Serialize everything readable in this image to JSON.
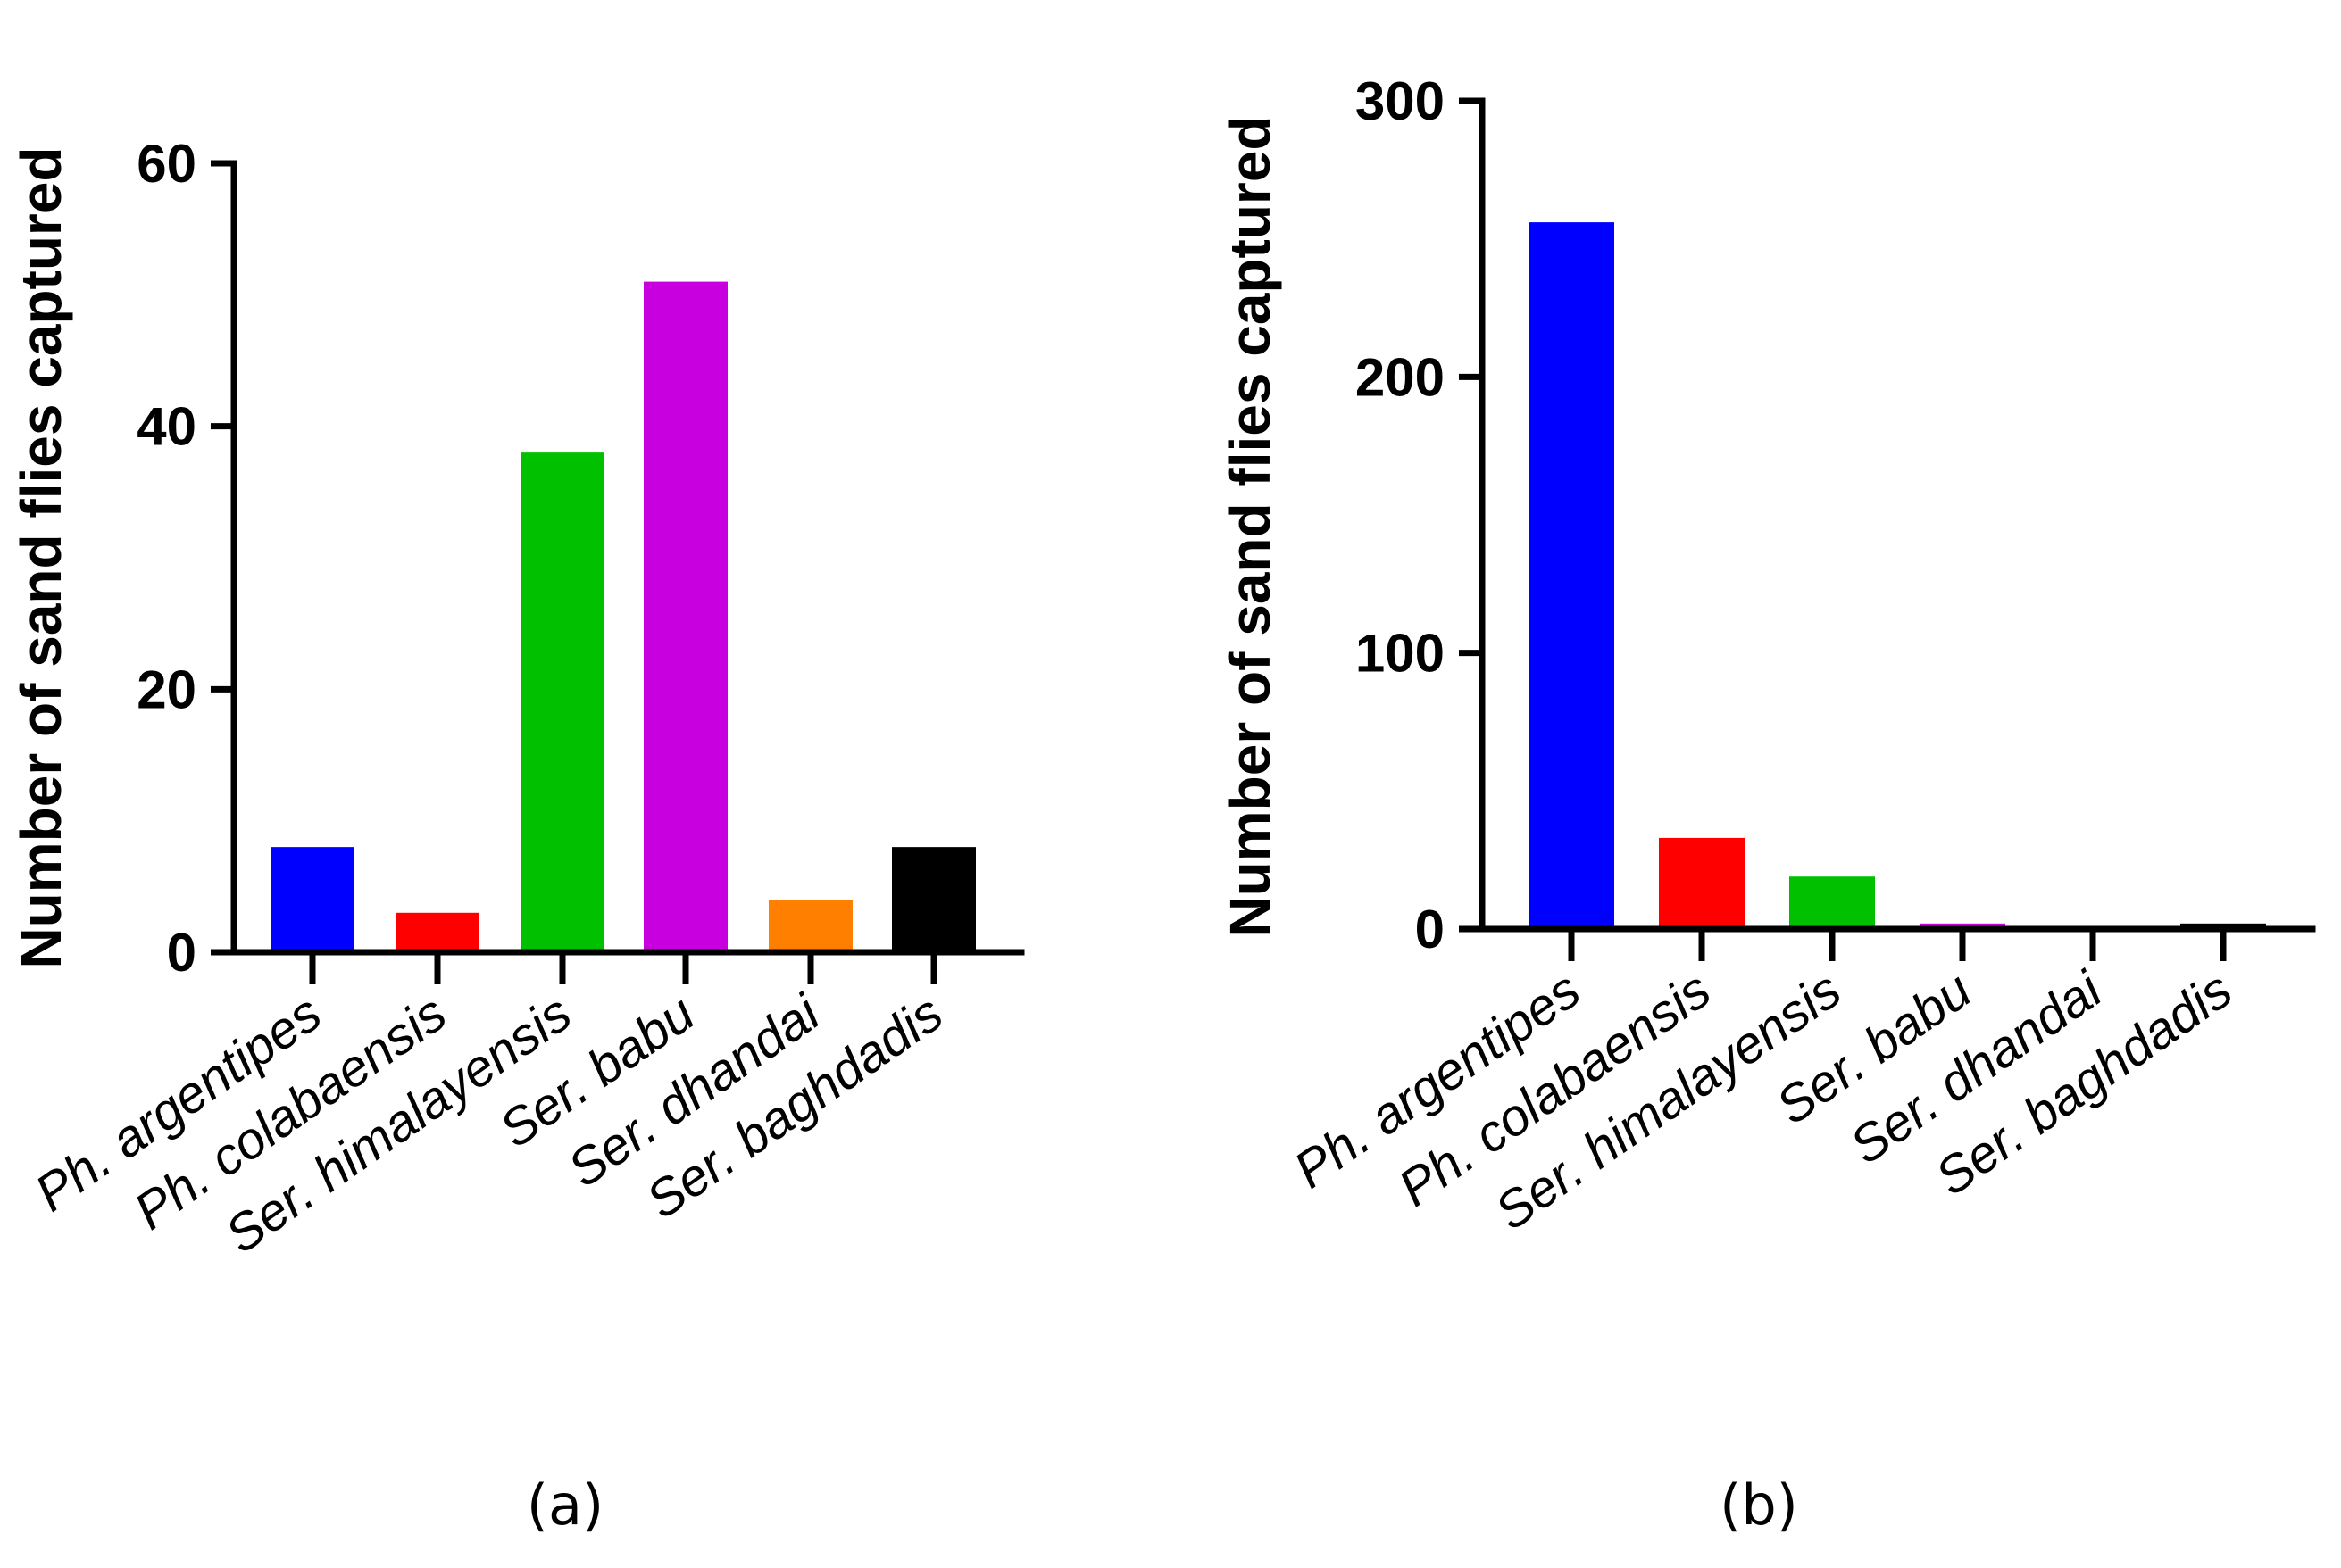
{
  "colors": [
    "#0000ff",
    "#ff0000",
    "#00c000",
    "#c800e0",
    "#ff8000",
    "#000000"
  ],
  "chart_data": [
    {
      "type": "bar",
      "panel_label": "(a)",
      "ylabel": "Number of sand flies captured",
      "xlabel": "",
      "categories": [
        "Ph. argentipes",
        "Ph. colabaensis",
        "Ser. himalayensis",
        "Ser. babu",
        "Ser. dhandai",
        "Ser. baghdadis"
      ],
      "values": [
        8,
        3,
        38,
        51,
        4,
        8
      ],
      "ylim": [
        0,
        60
      ],
      "yticks": [
        0,
        20,
        40,
        60
      ],
      "ytick_labels": [
        "0",
        "20",
        "40",
        "60"
      ],
      "grid": false
    },
    {
      "type": "bar",
      "panel_label": "(b)",
      "ylabel": "Number of sand flies captured",
      "xlabel": "",
      "categories": [
        "Ph. argentipes",
        "Ph. colabaensis",
        "Ser. himalayensis",
        "Ser. babu",
        "Ser. dhandai",
        "Ser. baghdadis"
      ],
      "values": [
        256,
        33,
        19,
        2,
        0,
        2
      ],
      "ylim": [
        0,
        300
      ],
      "yticks": [
        0,
        100,
        200,
        300
      ],
      "ytick_labels": [
        "0",
        "100",
        "200",
        "300"
      ],
      "grid": false
    }
  ]
}
